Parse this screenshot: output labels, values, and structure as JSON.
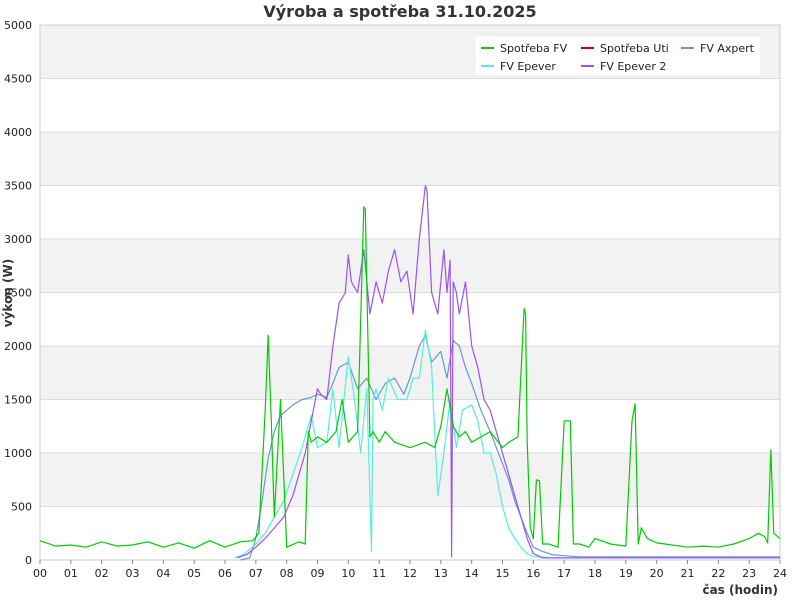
{
  "chart_data": {
    "type": "line",
    "title": "Výroba a spotřeba 31.10.2025",
    "xlabel": "čas (hodin)",
    "ylabel": "výkon (W)",
    "xlim": [
      0,
      24
    ],
    "ylim": [
      0,
      5000
    ],
    "x_ticks": [
      "00",
      "01",
      "02",
      "03",
      "04",
      "05",
      "06",
      "07",
      "08",
      "09",
      "10",
      "11",
      "12",
      "13",
      "14",
      "15",
      "16",
      "17",
      "18",
      "19",
      "20",
      "21",
      "22",
      "23",
      "24"
    ],
    "y_ticks": [
      0,
      500,
      1000,
      1500,
      2000,
      2500,
      3000,
      3500,
      4000,
      4500,
      5000
    ],
    "grid": true,
    "legend_position": "top-right",
    "series": [
      {
        "name": "Spotřeba FV",
        "color": "#00cc00",
        "x": [
          0,
          0.5,
          1,
          1.5,
          2,
          2.5,
          3,
          3.5,
          4,
          4.5,
          5,
          5.5,
          6,
          6.5,
          6.9,
          7.1,
          7.3,
          7.4,
          7.5,
          7.6,
          7.8,
          8,
          8.4,
          8.6,
          8.7,
          8.8,
          9,
          9.3,
          9.6,
          9.8,
          10,
          10.3,
          10.5,
          10.55,
          10.7,
          10.8,
          11,
          11.2,
          11.5,
          12,
          12.5,
          12.8,
          13,
          13.2,
          13.4,
          13.6,
          13.8,
          14,
          14.3,
          14.6,
          15,
          15.2,
          15.5,
          15.7,
          15.75,
          15.8,
          15.9,
          16,
          16.1,
          16.2,
          16.3,
          16.5,
          16.8,
          17,
          17.2,
          17.3,
          17.5,
          17.8,
          18,
          18.5,
          19,
          19.2,
          19.3,
          19.4,
          19.5,
          19.7,
          20,
          20.5,
          21,
          21.5,
          22,
          22.5,
          23,
          23.3,
          23.5,
          23.6,
          23.7,
          23.8,
          24
        ],
        "y": [
          180,
          130,
          140,
          120,
          170,
          130,
          140,
          170,
          120,
          160,
          110,
          180,
          120,
          170,
          180,
          250,
          1380,
          2100,
          1300,
          400,
          1500,
          120,
          170,
          150,
          1200,
          1100,
          1150,
          1100,
          1200,
          1500,
          1100,
          1200,
          3300,
          3280,
          1150,
          1200,
          1100,
          1200,
          1100,
          1050,
          1100,
          1050,
          1250,
          1600,
          1250,
          1150,
          1200,
          1100,
          1150,
          1200,
          1050,
          1100,
          1150,
          2350,
          2300,
          1100,
          300,
          200,
          750,
          740,
          150,
          150,
          120,
          1300,
          1300,
          150,
          150,
          120,
          200,
          150,
          130,
          1300,
          1460,
          150,
          300,
          200,
          160,
          140,
          120,
          130,
          120,
          150,
          200,
          250,
          220,
          160,
          1030,
          250,
          200
        ]
      },
      {
        "name": "Spotřeba Uti",
        "color": "#cc0000",
        "x": [],
        "y": []
      },
      {
        "name": "FV Axpert",
        "color": "#6699cc",
        "x": [
          0,
          6,
          6.5,
          6.8,
          7,
          7.2,
          7.4,
          7.6,
          7.8,
          8,
          8.2,
          8.5,
          8.8,
          9,
          9.3,
          9.5,
          9.7,
          10,
          10.3,
          10.6,
          10.9,
          11.2,
          11.5,
          11.8,
          12,
          12.3,
          12.5,
          12.7,
          13,
          13.2,
          13.4,
          13.6,
          13.8,
          14,
          14.3,
          14.6,
          15,
          15.2,
          15.4,
          15.6,
          15.8,
          16,
          16.3,
          16.6,
          17,
          17.5,
          18,
          24
        ],
        "y": [
          null,
          null,
          0,
          20,
          200,
          550,
          950,
          1200,
          1350,
          1400,
          1450,
          1500,
          1520,
          1550,
          1520,
          1650,
          1800,
          1850,
          1600,
          1700,
          1500,
          1650,
          1700,
          1550,
          1700,
          2000,
          2100,
          1850,
          1950,
          1700,
          2050,
          2000,
          1800,
          1650,
          1400,
          1200,
          900,
          750,
          550,
          400,
          250,
          120,
          80,
          50,
          40,
          30,
          30,
          30
        ]
      },
      {
        "name": "FV Epever",
        "color": "#55eedd",
        "x": [
          0,
          6,
          6.3,
          6.6,
          7,
          7.3,
          7.6,
          7.9,
          8.2,
          8.5,
          8.8,
          9,
          9.3,
          9.5,
          9.7,
          10,
          10.2,
          10.4,
          10.6,
          10.75,
          10.8,
          10.9,
          11.1,
          11.3,
          11.6,
          11.9,
          12.1,
          12.3,
          12.5,
          12.7,
          12.9,
          13.1,
          13.3,
          13.5,
          13.7,
          14,
          14.2,
          14.4,
          14.6,
          14.8,
          15,
          15.2,
          15.4,
          15.6,
          15.8,
          16,
          16.3,
          16.6,
          17,
          24
        ],
        "y": [
          null,
          null,
          20,
          50,
          150,
          250,
          400,
          550,
          800,
          1050,
          1350,
          1050,
          1100,
          1600,
          1050,
          1900,
          1500,
          1000,
          1600,
          80,
          1500,
          1600,
          1400,
          1700,
          1500,
          1500,
          1700,
          1700,
          2150,
          1800,
          600,
          1000,
          1500,
          1050,
          1400,
          1450,
          1300,
          1000,
          1000,
          800,
          500,
          300,
          200,
          120,
          60,
          30,
          30,
          20,
          20,
          20
        ]
      },
      {
        "name": "FV Epever 2",
        "color": "#9955ee",
        "x": [
          0,
          6,
          6.4,
          6.7,
          7,
          7.3,
          7.6,
          7.9,
          8.2,
          8.4,
          8.6,
          8.8,
          9,
          9.1,
          9.3,
          9.5,
          9.7,
          9.9,
          10,
          10.1,
          10.3,
          10.5,
          10.7,
          10.9,
          11.1,
          11.3,
          11.5,
          11.7,
          11.9,
          12.1,
          12.3,
          12.5,
          12.55,
          12.7,
          12.9,
          13.1,
          13.2,
          13.3,
          13.35,
          13.4,
          13.5,
          13.6,
          13.8,
          14,
          14.2,
          14.4,
          14.6,
          14.8,
          15,
          15.2,
          15.4,
          15.6,
          15.8,
          16,
          16.3,
          16.6,
          17,
          24
        ],
        "y": [
          null,
          null,
          20,
          50,
          120,
          200,
          300,
          400,
          600,
          800,
          1000,
          1300,
          1600,
          1550,
          1500,
          2000,
          2400,
          2500,
          2850,
          2600,
          2500,
          2900,
          2300,
          2600,
          2400,
          2700,
          2900,
          2600,
          2700,
          2300,
          3000,
          3500,
          3450,
          2500,
          2300,
          2900,
          2500,
          2800,
          30,
          2600,
          2500,
          2300,
          2600,
          2000,
          1800,
          1500,
          1400,
          1200,
          1000,
          800,
          600,
          400,
          200,
          60,
          20,
          20,
          20,
          20
        ]
      }
    ],
    "legend": [
      {
        "label": "Spotřeba FV",
        "color": "#00cc00"
      },
      {
        "label": "Spotřeba Uti",
        "color": "#cc0000"
      },
      {
        "label": "FV Axpert",
        "color": "#6699cc"
      },
      {
        "label": "FV Epever",
        "color": "#55eedd"
      },
      {
        "label": "FV Epever 2",
        "color": "#9955ee"
      }
    ]
  }
}
